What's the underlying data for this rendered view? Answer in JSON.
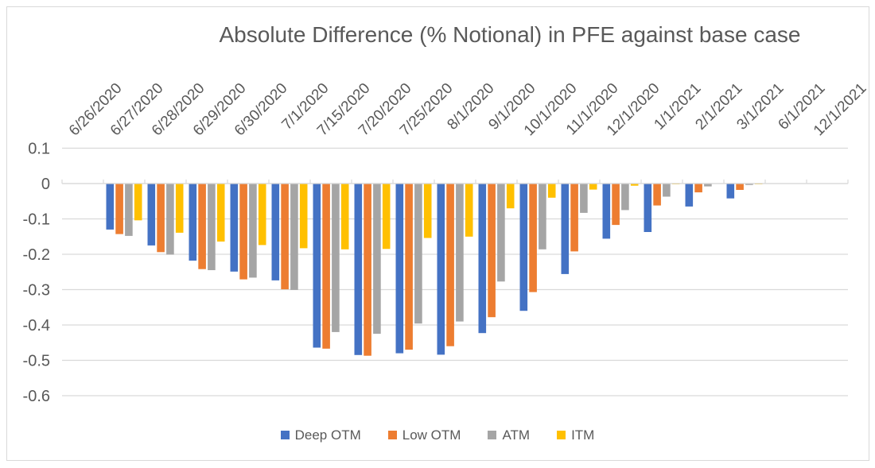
{
  "chart_data": {
    "type": "bar",
    "title": "Absolute Difference (% Notional) in PFE against base case",
    "categories": [
      "6/26/2020",
      "6/27/2020",
      "6/28/2020",
      "6/29/2020",
      "6/30/2020",
      "7/1/2020",
      "7/15/2020",
      "7/20/2020",
      "7/25/2020",
      "8/1/2020",
      "9/1/2020",
      "10/1/2020",
      "11/1/2020",
      "12/1/2020",
      "1/1/2021",
      "2/1/2021",
      "3/1/2021",
      "6/1/2021",
      "12/1/2021"
    ],
    "series": [
      {
        "name": "Deep OTM",
        "color": "#4472C4",
        "values": [
          0,
          -0.13,
          -0.175,
          -0.218,
          -0.249,
          -0.274,
          -0.464,
          -0.485,
          -0.48,
          -0.484,
          -0.423,
          -0.36,
          -0.256,
          -0.156,
          -0.137,
          -0.065,
          -0.042,
          0,
          0
        ]
      },
      {
        "name": "Low OTM",
        "color": "#ED7D31",
        "values": [
          0,
          -0.143,
          -0.194,
          -0.242,
          -0.271,
          -0.299,
          -0.467,
          -0.487,
          -0.47,
          -0.46,
          -0.378,
          -0.307,
          -0.192,
          -0.117,
          -0.062,
          -0.025,
          -0.018,
          0,
          0
        ]
      },
      {
        "name": "ATM",
        "color": "#A5A5A5",
        "values": [
          0,
          -0.148,
          -0.201,
          -0.245,
          -0.266,
          -0.301,
          -0.42,
          -0.425,
          -0.396,
          -0.39,
          -0.277,
          -0.186,
          -0.083,
          -0.075,
          -0.037,
          -0.008,
          -0.004,
          0,
          0
        ]
      },
      {
        "name": "ITM",
        "color": "#FFC000",
        "values": [
          0,
          -0.104,
          -0.139,
          -0.164,
          -0.174,
          -0.183,
          -0.186,
          -0.185,
          -0.154,
          -0.15,
          -0.07,
          -0.04,
          -0.017,
          -0.006,
          -0.002,
          -0.001,
          -0.002,
          0,
          0
        ]
      }
    ],
    "y_ticks": [
      0.1,
      0,
      -0.1,
      -0.2,
      -0.3,
      -0.4,
      -0.5,
      -0.6
    ],
    "y_tick_labels": [
      "0.1",
      "0",
      "-0.1",
      "-0.2",
      "-0.3",
      "-0.4",
      "-0.5",
      "-0.6"
    ],
    "ylim": [
      -0.6,
      0.1
    ],
    "grid": true,
    "legend_position": "bottom",
    "xlabel": "",
    "ylabel": ""
  },
  "colors": {
    "grid": "#D9D9D9",
    "axis": "#D9D9D9",
    "text": "#595959",
    "background": "#FFFFFF",
    "frame_border": "#D9D9D9"
  }
}
